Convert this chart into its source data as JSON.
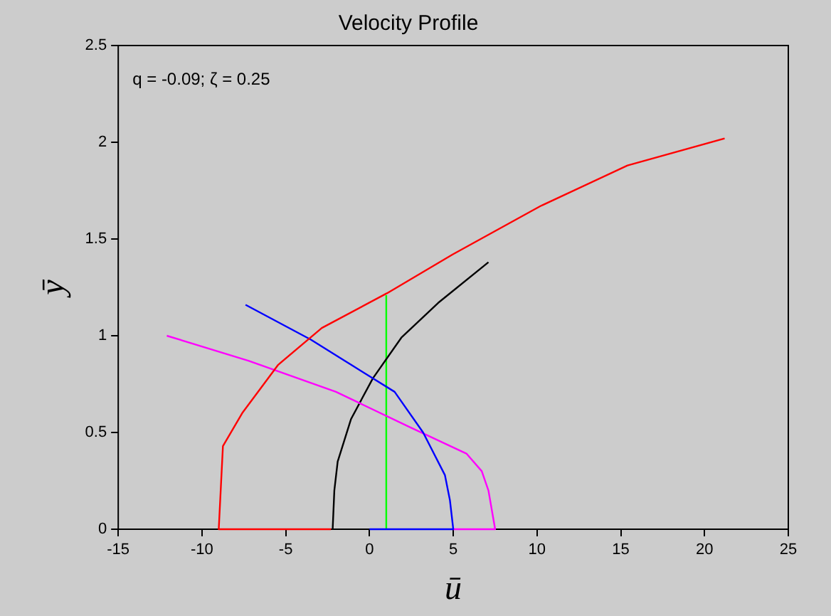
{
  "chart_data": {
    "type": "line",
    "title": "Velocity Profile",
    "xlabel": "ū",
    "ylabel": "ȳ",
    "annotations": [
      "q = -0.09; ζ = 0.25"
    ],
    "xlim": [
      -15,
      25
    ],
    "xticks": [
      -15,
      -10,
      -5,
      0,
      5,
      10,
      15,
      20,
      25
    ],
    "ylim": [
      0,
      2.5
    ],
    "yticks": [
      0,
      0.5,
      1,
      1.5,
      2,
      2.5
    ],
    "marker": "none",
    "line_style": "solid",
    "series": [
      {
        "color": "#ff0000",
        "x": [
          -2.3,
          -9,
          -8.75,
          -7.6,
          -5.45,
          -2.85,
          1.05,
          4.96,
          10.2,
          15.4,
          21.2
        ],
        "values": [
          0,
          0,
          0.43,
          0.6,
          0.85,
          1.04,
          1.22,
          1.42,
          1.67,
          1.88,
          2.02
        ]
      },
      {
        "color": "#0000ff",
        "x": [
          -7.4,
          -3.5,
          -1.1,
          1.5,
          3.2,
          4.5,
          4.8,
          5,
          0
        ],
        "values": [
          1.16,
          0.98,
          0.85,
          0.71,
          0.5,
          0.28,
          0.15,
          0,
          0
        ]
      },
      {
        "color": "#ff00ff",
        "x": [
          -12.1,
          -7.2,
          -2,
          2.35,
          5.8,
          6.7,
          7.1,
          7.5,
          5
        ],
        "values": [
          1,
          0.87,
          0.71,
          0.53,
          0.39,
          0.3,
          0.2,
          0,
          0
        ]
      },
      {
        "color": "#000000",
        "x": [
          -2.2,
          -2.1,
          -1.9,
          -1.1,
          0.2,
          1.9,
          4.1,
          7.1
        ],
        "values": [
          0,
          0.2,
          0.35,
          0.57,
          0.78,
          0.99,
          1.17,
          1.38
        ]
      },
      {
        "color": "#00ff00",
        "x": [
          1,
          1
        ],
        "values": [
          0,
          1.21
        ]
      }
    ]
  }
}
